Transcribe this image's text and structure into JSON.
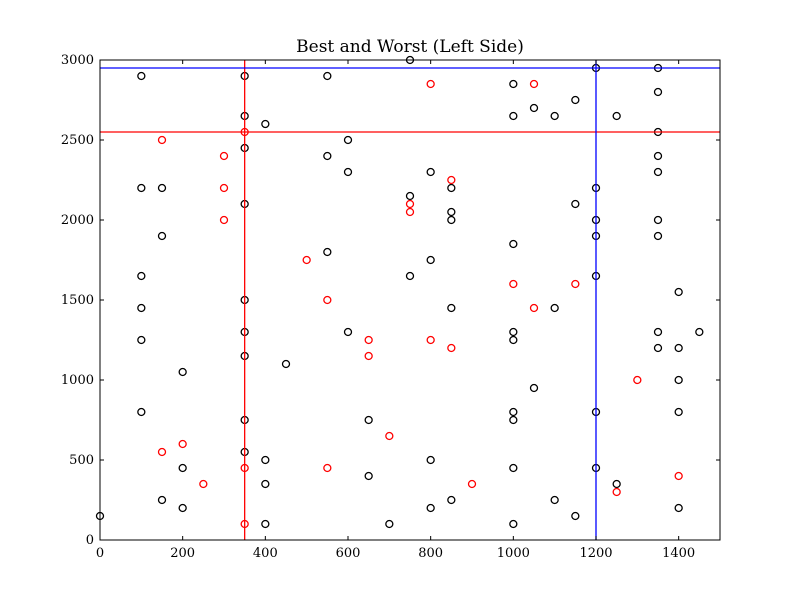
{
  "chart_data": {
    "type": "scatter",
    "title": "Best and Worst (Left Side)",
    "xlabel": "",
    "ylabel": "",
    "xlim": [
      0,
      1500
    ],
    "ylim": [
      0,
      3000
    ],
    "x_ticks": [
      0,
      200,
      400,
      600,
      800,
      1000,
      1200,
      1400
    ],
    "y_ticks": [
      0,
      500,
      1000,
      1500,
      2000,
      2500,
      3000
    ],
    "grid": false,
    "marker": "open-circle",
    "series": [
      {
        "color": "#000000",
        "points": [
          [
            0,
            150
          ],
          [
            100,
            2900
          ],
          [
            100,
            2200
          ],
          [
            100,
            1650
          ],
          [
            100,
            1450
          ],
          [
            100,
            1250
          ],
          [
            100,
            800
          ],
          [
            150,
            2200
          ],
          [
            150,
            1900
          ],
          [
            150,
            250
          ],
          [
            200,
            1050
          ],
          [
            200,
            450
          ],
          [
            200,
            200
          ],
          [
            350,
            2900
          ],
          [
            350,
            2650
          ],
          [
            350,
            2450
          ],
          [
            350,
            2100
          ],
          [
            350,
            1500
          ],
          [
            350,
            1300
          ],
          [
            350,
            1150
          ],
          [
            350,
            750
          ],
          [
            350,
            550
          ],
          [
            400,
            2600
          ],
          [
            400,
            500
          ],
          [
            400,
            350
          ],
          [
            400,
            100
          ],
          [
            450,
            1100
          ],
          [
            550,
            2900
          ],
          [
            550,
            2400
          ],
          [
            550,
            1800
          ],
          [
            600,
            2500
          ],
          [
            600,
            2300
          ],
          [
            600,
            1300
          ],
          [
            650,
            750
          ],
          [
            650,
            400
          ],
          [
            700,
            100
          ],
          [
            750,
            3000
          ],
          [
            750,
            2150
          ],
          [
            750,
            1650
          ],
          [
            800,
            2300
          ],
          [
            800,
            1750
          ],
          [
            800,
            500
          ],
          [
            800,
            200
          ],
          [
            850,
            2200
          ],
          [
            850,
            2050
          ],
          [
            850,
            2000
          ],
          [
            850,
            1450
          ],
          [
            850,
            250
          ],
          [
            1000,
            2850
          ],
          [
            1000,
            2650
          ],
          [
            1000,
            1850
          ],
          [
            1000,
            1300
          ],
          [
            1000,
            1250
          ],
          [
            1000,
            800
          ],
          [
            1000,
            750
          ],
          [
            1000,
            450
          ],
          [
            1000,
            100
          ],
          [
            1050,
            2700
          ],
          [
            1050,
            950
          ],
          [
            1100,
            2650
          ],
          [
            1100,
            1450
          ],
          [
            1100,
            250
          ],
          [
            1150,
            2750
          ],
          [
            1150,
            2100
          ],
          [
            1150,
            150
          ],
          [
            1200,
            2950
          ],
          [
            1200,
            2200
          ],
          [
            1200,
            2000
          ],
          [
            1200,
            1900
          ],
          [
            1200,
            1650
          ],
          [
            1200,
            800
          ],
          [
            1200,
            450
          ],
          [
            1250,
            2650
          ],
          [
            1250,
            350
          ],
          [
            1350,
            2950
          ],
          [
            1350,
            2800
          ],
          [
            1350,
            2550
          ],
          [
            1350,
            2400
          ],
          [
            1350,
            2300
          ],
          [
            1350,
            2000
          ],
          [
            1350,
            1900
          ],
          [
            1350,
            1300
          ],
          [
            1350,
            1200
          ],
          [
            1400,
            1550
          ],
          [
            1400,
            1200
          ],
          [
            1400,
            1000
          ],
          [
            1400,
            800
          ],
          [
            1400,
            200
          ],
          [
            1450,
            1300
          ]
        ]
      },
      {
        "color": "#ff0000",
        "points": [
          [
            150,
            2500
          ],
          [
            150,
            550
          ],
          [
            200,
            600
          ],
          [
            250,
            350
          ],
          [
            300,
            2400
          ],
          [
            300,
            2200
          ],
          [
            300,
            2000
          ],
          [
            350,
            2550
          ],
          [
            350,
            450
          ],
          [
            350,
            100
          ],
          [
            500,
            1750
          ],
          [
            550,
            1500
          ],
          [
            550,
            450
          ],
          [
            650,
            1250
          ],
          [
            650,
            1150
          ],
          [
            700,
            650
          ],
          [
            750,
            2100
          ],
          [
            750,
            2050
          ],
          [
            800,
            2850
          ],
          [
            800,
            1250
          ],
          [
            850,
            2250
          ],
          [
            850,
            1200
          ],
          [
            900,
            350
          ],
          [
            1000,
            1600
          ],
          [
            1050,
            2850
          ],
          [
            1050,
            1450
          ],
          [
            1150,
            1600
          ],
          [
            1250,
            300
          ],
          [
            1300,
            1000
          ],
          [
            1400,
            400
          ]
        ]
      }
    ],
    "reference_lines": [
      {
        "orientation": "vertical",
        "value": 350,
        "color": "#ff0000"
      },
      {
        "orientation": "horizontal",
        "value": 2550,
        "color": "#ff0000"
      },
      {
        "orientation": "vertical",
        "value": 1200,
        "color": "#0000ff"
      },
      {
        "orientation": "horizontal",
        "value": 2950,
        "color": "#0000ff"
      }
    ]
  }
}
